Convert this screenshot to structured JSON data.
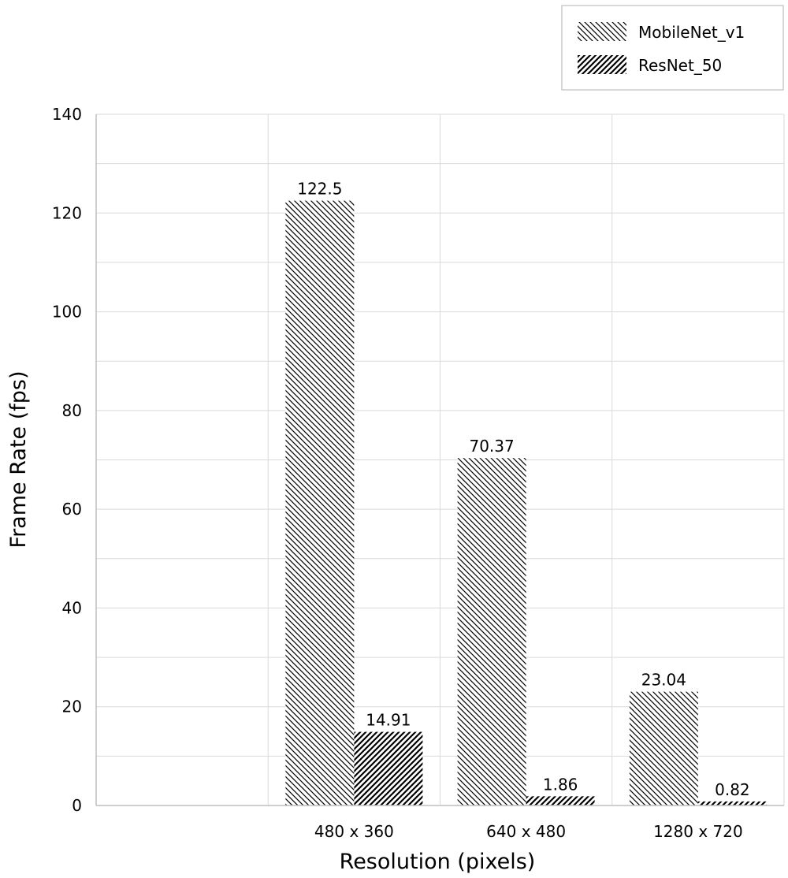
{
  "chart_data": {
    "type": "bar",
    "categories": [
      "480 x 360",
      "640 x 480",
      "1280 x 720"
    ],
    "series": [
      {
        "name": "MobileNet_v1",
        "values": [
          122.5,
          70.37,
          23.04
        ],
        "labels": [
          "122.5",
          "70.37",
          "23.04"
        ],
        "pattern": "back-diagonal-hatch"
      },
      {
        "name": "ResNet_50",
        "values": [
          14.91,
          1.86,
          0.82
        ],
        "labels": [
          "14.91",
          "1.86",
          "0.82"
        ],
        "pattern": "forward-diagonal-hatch"
      }
    ],
    "xlabel": "Resolution (pixels)",
    "ylabel": "Frame Rate (fps)",
    "ylim": [
      0,
      140
    ],
    "yticks": [
      "0",
      "20",
      "40",
      "60",
      "80",
      "100",
      "120",
      "140"
    ],
    "grid": true,
    "legend_position": "top-right"
  }
}
